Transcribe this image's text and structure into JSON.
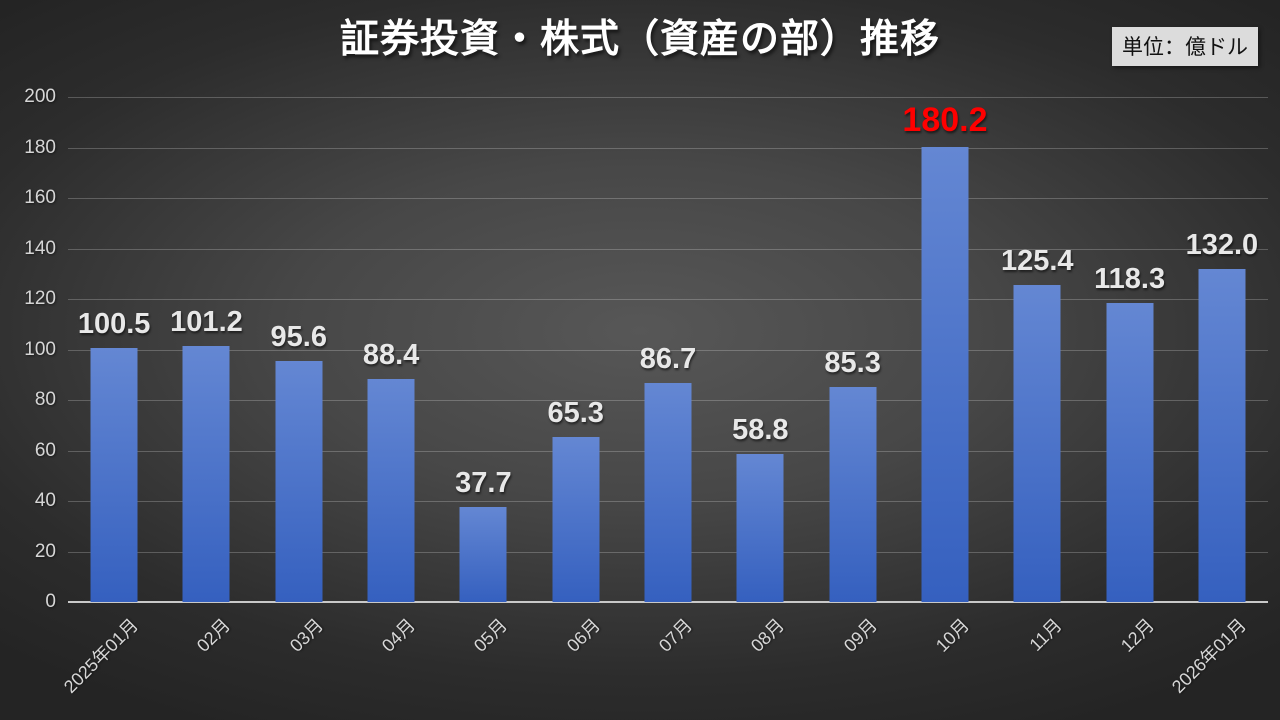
{
  "chart_data": {
    "type": "bar",
    "title": "証券投資・株式（資産の部）推移",
    "unit_label": "単位：億ドル",
    "categories": [
      "2025年01月",
      "02月",
      "03月",
      "04月",
      "05月",
      "06月",
      "07月",
      "08月",
      "09月",
      "10月",
      "11月",
      "12月",
      "2026年01月"
    ],
    "values": [
      100.5,
      101.2,
      95.6,
      88.4,
      37.7,
      65.3,
      86.7,
      58.8,
      85.3,
      180.2,
      125.4,
      118.3,
      132.0
    ],
    "value_decimals": 1,
    "highlight_index": 9,
    "xlabel": "",
    "ylabel": "",
    "ylim": [
      0,
      200
    ],
    "ytick_step": 20,
    "grid": true,
    "legend": "none",
    "xlabel_rotation_deg": -45,
    "colors": {
      "title": "#ffffff",
      "unit_bg": "#dcdcdc",
      "unit_text": "#111111",
      "bar_top": "#6487d3",
      "bar_bottom": "#3560bf",
      "value_label": "#e8e8e8",
      "highlight_label": "#ff0000",
      "axis_label": "#d6d6d6",
      "grid_color": "rgba(255,255,255,0.22)",
      "axis_line": "#c9c9c9"
    }
  }
}
